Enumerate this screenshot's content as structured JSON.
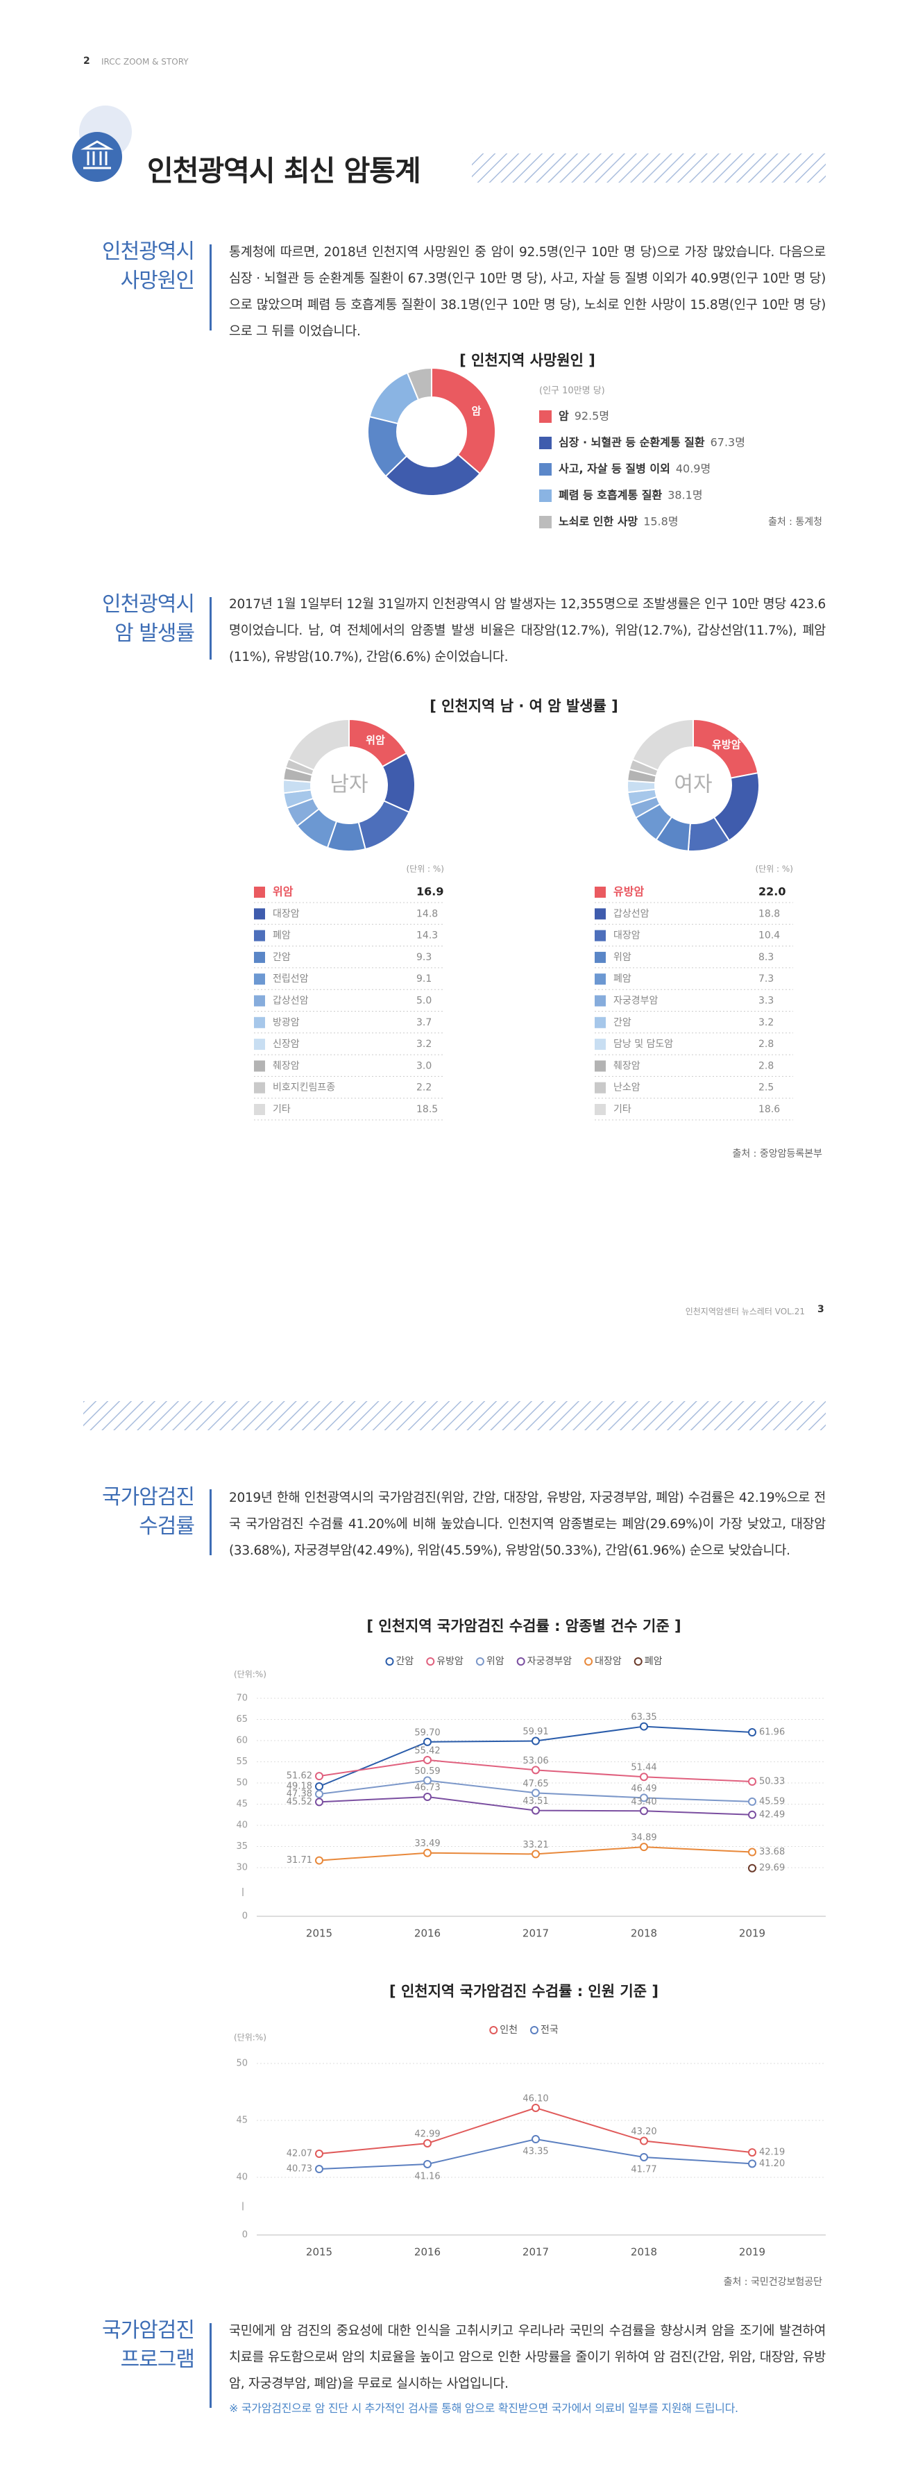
{
  "header": {
    "page_number": "2",
    "running_title": "IRCC ZOOM & STORY"
  },
  "title": "인천광역시 최신 암통계",
  "sections": [
    {
      "heading": [
        "인천광역시",
        "사망원인"
      ],
      "body": "통계청에 따르면, 2018년 인천지역 사망원인 중 암이 92.5명(인구 10만 명 당)으로 가장 많았습니다. 다음으로 심장 · 뇌혈관 등 순환계통 질환이 67.3명(인구 10만 명 당), 사고, 자살 등 질병 이외가 40.9명(인구 10만 명 당)으로 많았으며 폐렴 등 호흡계통 질환이 38.1명(인구 10만 명 당), 노쇠로 인한 사망이 15.8명(인구 10만 명 당)으로 그 뒤를 이었습니다."
    },
    {
      "heading": [
        "인천광역시",
        "암 발생률"
      ],
      "body": "2017년 1월 1일부터 12월 31일까지 인천광역시 암 발생자는 12,355명으로 조발생률은 인구 10만 명당 423.6명이었습니다. 남, 여 전체에서의 암종별 발생 비율은 대장암(12.7%), 위암(12.7%), 갑상선암(11.7%), 폐암(11%), 유방암(10.7%), 간암(6.6%) 순이었습니다."
    },
    {
      "heading": [
        "국가암검진",
        "수검률"
      ],
      "body": "2019년 한해 인천광역시의 국가암검진(위암, 간암, 대장암, 유방암, 자궁경부암, 폐암) 수검률은 42.19%으로 전국 국가암검진 수검률 41.20%에 비해 높았습니다. 인천지역 암종별로는 폐암(29.69%)이 가장 낮았고, 대장암(33.68%), 자궁경부암(42.49%), 위암(45.59%), 유방암(50.33%), 간암(61.96%) 순으로 낮았습니다."
    },
    {
      "heading": [
        "국가암검진",
        "프로그램"
      ],
      "body": "국민에게 암 검진의 중요성에 대한 인식을 고취시키고 우리나라 국민의 수검률을 향상시켜 암을 조기에 발견하여 치료를 유도함으로써 암의 치료율을 높이고 암으로 인한 사망률을 줄이기 위하여 암 검진(간암, 위암, 대장암, 유방암, 자궁경부암, 폐암)을 무료로 실시하는 사업입니다.",
      "note": "※ 국가암검진으로 암 진단 시 추가적인 검사를 통해 암으로 확진받으면 국가에서 의료비 일부를 지원해 드립니다."
    }
  ],
  "chart_data": [
    {
      "type": "pie",
      "title": "[ 인천지역 사망원인 ]",
      "subtitle": "(인구 10만명 당)",
      "categories": [
        "암",
        "심장 · 뇌혈관 등 순환계통 질환",
        "사고, 자살 등 질병 이외",
        "폐렴 등 호흡계통 질환",
        "노쇠로 인한 사망"
      ],
      "values": [
        92.5,
        67.3,
        40.9,
        38.1,
        15.8
      ],
      "value_labels": [
        "92.5명",
        "67.3명",
        "40.9명",
        "38.1명",
        "15.8명"
      ],
      "colors": [
        "#ea5a60",
        "#3f5cad",
        "#5b87c9",
        "#8ab4e3",
        "#bcbcbc"
      ],
      "source": "출처 : 통계청"
    },
    {
      "type": "pie",
      "title": "[ 인천지역 남 · 여 암 발생률 ]",
      "center_label": "남자",
      "unit": "(단위 : %)",
      "categories": [
        "위암",
        "대장암",
        "폐암",
        "간암",
        "전립선암",
        "갑상선암",
        "방광암",
        "신장암",
        "췌장암",
        "비호지킨림프종",
        "기타"
      ],
      "values": [
        16.9,
        14.8,
        14.3,
        9.3,
        9.1,
        5.0,
        3.7,
        3.2,
        3.0,
        2.2,
        18.5
      ],
      "value_labels": [
        "16.9",
        "14.8",
        "14.3",
        "9.3",
        "9.1",
        "5.0",
        "3.7",
        "3.2",
        "3.0",
        "2.2",
        "18.5"
      ],
      "colors": [
        "#ea5a60",
        "#3f5cad",
        "#4d6fbb",
        "#5a86c7",
        "#6c98d2",
        "#86acdc",
        "#a6c7ea",
        "#c8def2",
        "#b3b3b3",
        "#c9c9c9",
        "#dcdcdc"
      ]
    },
    {
      "type": "pie",
      "center_label": "여자",
      "unit": "(단위 : %)",
      "categories": [
        "유방암",
        "갑상선암",
        "대장암",
        "위암",
        "폐암",
        "자궁경부암",
        "간암",
        "담낭 및 담도암",
        "췌장암",
        "난소암",
        "기타"
      ],
      "values": [
        22.0,
        18.8,
        10.4,
        8.3,
        7.3,
        3.3,
        3.2,
        2.8,
        2.8,
        2.5,
        18.6
      ],
      "value_labels": [
        "22.0",
        "18.8",
        "10.4",
        "8.3",
        "7.3",
        "3.3",
        "3.2",
        "2.8",
        "2.8",
        "2.5",
        "18.6"
      ],
      "colors": [
        "#ea5a60",
        "#3f5cad",
        "#4d6fbb",
        "#5a86c7",
        "#6c98d2",
        "#86acdc",
        "#a6c7ea",
        "#c8def2",
        "#b3b3b3",
        "#c9c9c9",
        "#dcdcdc"
      ],
      "source": "출처 : 중앙암등록본부"
    },
    {
      "type": "line",
      "title": "[ 인천지역 국가암검진 수검률  :  암종별 건수 기준 ]",
      "y_label": "(단위:%)",
      "categories": [
        "2015",
        "2016",
        "2017",
        "2018",
        "2019"
      ],
      "ylim": [
        0,
        70
      ],
      "yticks": [
        0,
        30,
        35,
        40,
        45,
        50,
        55,
        60,
        65,
        70
      ],
      "axis_break": true,
      "grid": true,
      "series": [
        {
          "name": "간암",
          "color": "#2a5caa",
          "values": [
            49.18,
            59.7,
            59.91,
            63.35,
            61.96
          ],
          "value_labels": [
            "49.18",
            "59.70",
            "59.91",
            "63.35",
            "61.96"
          ]
        },
        {
          "name": "유방암",
          "color": "#e0607e",
          "values": [
            51.62,
            55.42,
            53.06,
            51.44,
            50.33
          ],
          "value_labels": [
            "51.62",
            "55.42",
            "53.06",
            "51.44",
            "50.33"
          ]
        },
        {
          "name": "위암",
          "color": "#7b97c9",
          "values": [
            47.38,
            50.59,
            47.65,
            46.49,
            45.59
          ],
          "value_labels": [
            "47.38",
            "50.59",
            "47.65",
            "46.49",
            "45.59"
          ]
        },
        {
          "name": "자궁경부암",
          "color": "#7a4ea0",
          "values": [
            45.52,
            46.73,
            43.51,
            43.4,
            42.49
          ],
          "value_labels": [
            "45.52",
            "46.73",
            "43.51",
            "43.40",
            "42.49"
          ]
        },
        {
          "name": "대장암",
          "color": "#e8883a",
          "values": [
            31.71,
            33.49,
            33.21,
            34.89,
            33.68
          ],
          "value_labels": [
            "31.71",
            "33.49",
            "33.21",
            "34.89",
            "33.68"
          ]
        },
        {
          "name": "폐암",
          "color": "#6b3a2a",
          "values": [
            null,
            null,
            null,
            null,
            29.69
          ],
          "value_labels": [
            null,
            null,
            null,
            null,
            "29.69"
          ]
        }
      ]
    },
    {
      "type": "line",
      "title": "[ 인천지역 국가암검진 수검률  :  인원 기준 ]",
      "y_label": "(단위:%)",
      "categories": [
        "2015",
        "2016",
        "2017",
        "2018",
        "2019"
      ],
      "ylim": [
        0,
        50
      ],
      "yticks": [
        0,
        40,
        45,
        50
      ],
      "axis_break": true,
      "grid": true,
      "series": [
        {
          "name": "인천",
          "color": "#e05a5a",
          "values": [
            42.07,
            42.99,
            46.1,
            43.2,
            42.19
          ],
          "value_labels": [
            "42.07",
            "42.99",
            "46.10",
            "43.20",
            "42.19"
          ]
        },
        {
          "name": "전국",
          "color": "#5b7fc0",
          "values": [
            40.73,
            41.16,
            43.35,
            41.77,
            41.2
          ],
          "value_labels": [
            "40.73",
            "41.16",
            "43.35",
            "41.77",
            "41.20"
          ]
        }
      ],
      "source": "출처 : 국민건강보험공단"
    }
  ],
  "footer": {
    "running_title": "인천지역암센터 뉴스레터 VOL.21",
    "page_number": "3"
  }
}
